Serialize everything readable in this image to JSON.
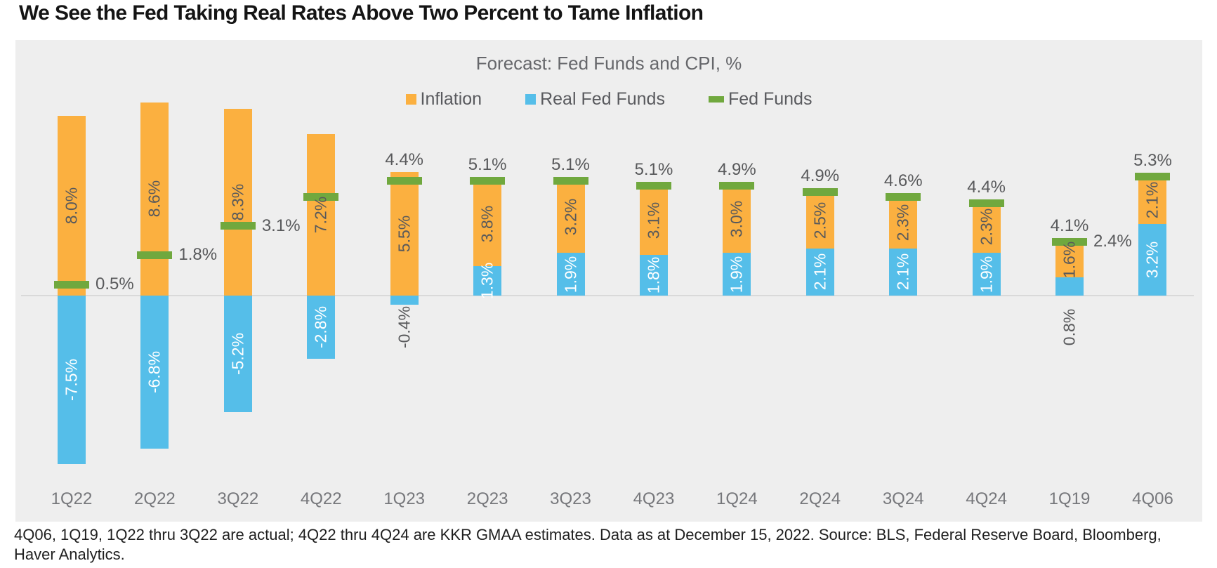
{
  "page": {
    "title": "We See the Fed Taking Real Rates Above Two Percent to Tame Inflation",
    "footnote": "4Q06, 1Q19, 1Q22 thru 3Q22 are actual; 4Q22 thru 4Q24 are KKR GMAA estimates. Data as at December 15, 2022. Source: BLS, Federal Reserve Board, Bloomberg, Haver Analytics."
  },
  "chart_data": {
    "type": "bar",
    "subtype": "stacked-bars-with-marker-series",
    "title": "Forecast: Fed Funds and CPI, %",
    "categories": [
      "1Q22",
      "2Q22",
      "3Q22",
      "4Q22",
      "1Q23",
      "2Q23",
      "3Q23",
      "4Q23",
      "1Q24",
      "2Q24",
      "3Q24",
      "4Q24",
      "1Q19",
      "4Q06"
    ],
    "series": [
      {
        "name": "Inflation",
        "type": "bar-segment",
        "marker": "square-icon",
        "color": "#FBB040",
        "values": [
          8.0,
          8.6,
          8.3,
          7.2,
          5.5,
          3.8,
          3.2,
          3.1,
          3.0,
          2.5,
          2.3,
          2.3,
          1.6,
          2.1
        ]
      },
      {
        "name": "Real Fed Funds",
        "type": "bar-segment",
        "marker": "square-icon",
        "color": "#55BEE9",
        "values": [
          -7.5,
          -6.8,
          -5.2,
          -2.8,
          -0.4,
          1.3,
          1.9,
          1.8,
          1.9,
          2.1,
          2.1,
          1.9,
          0.8,
          3.2
        ]
      },
      {
        "name": "Fed Funds",
        "type": "dash-marker",
        "marker": "dash-icon",
        "color": "#70A83E",
        "values": [
          0.5,
          1.8,
          3.1,
          4.4,
          5.1,
          5.1,
          5.1,
          4.9,
          4.9,
          4.6,
          4.4,
          4.1,
          2.4,
          5.3
        ]
      }
    ],
    "value_label_format": "0.0%",
    "ylim": [
      -9,
      10
    ],
    "grid": false,
    "legend_position": "top-center",
    "fed_label_placement": [
      "right",
      "right",
      "right",
      "above-next",
      "above-next",
      "above-next",
      "above-next",
      "above-next",
      "above-next",
      "above-next",
      "above-next",
      "above-next",
      "right",
      "above-self"
    ],
    "colors": {
      "plot_background": "#EEEEEE",
      "zero_line": "#D9D9D9",
      "inside_bar_label_on_orange": "#58595B",
      "inside_bar_label_on_blue": "#FFFFFF",
      "outside_label": "#58595B",
      "axis_label": "#76777B",
      "subtitle": "#66676B",
      "legend_text": "#595A5E",
      "title_text": "#141414"
    }
  }
}
